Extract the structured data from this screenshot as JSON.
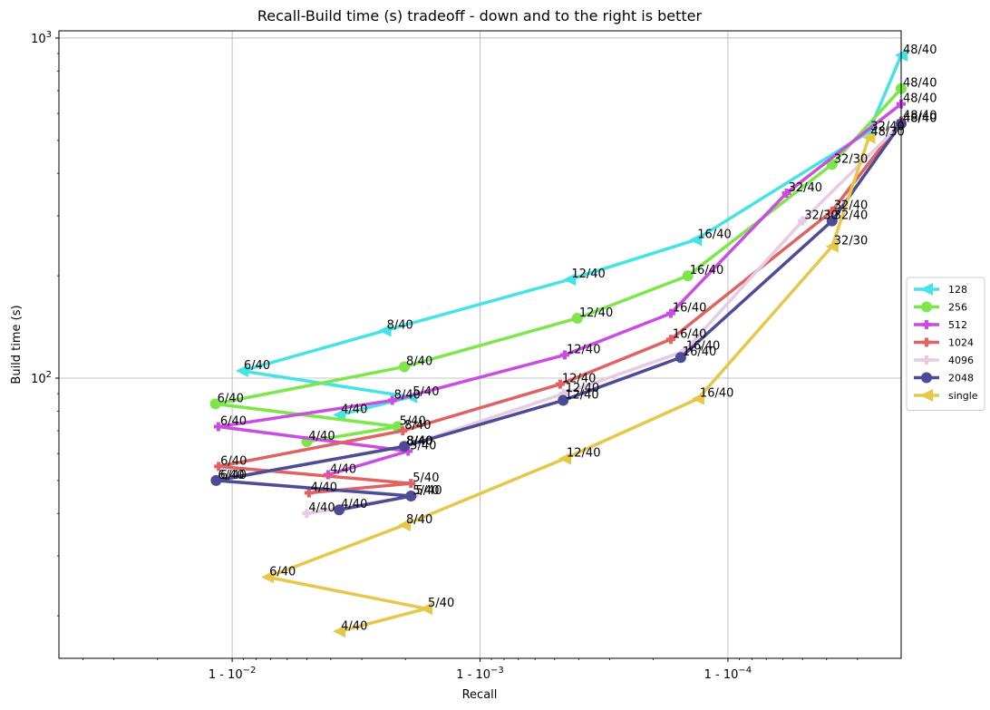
{
  "chart_data": {
    "type": "line",
    "title": "Recall-Build time (s) tradeoff - down and to the right is better",
    "xlabel": "Recall",
    "ylabel": "Build time (s)",
    "x_scale": "log(1 - recall), reversed",
    "y_scale": "log",
    "xlim": [
      0.95,
      0.99998
    ],
    "ylim": [
      15,
      1050
    ],
    "x_ticks": [
      {
        "value": 0.99,
        "label": "1 - 10^-2"
      },
      {
        "value": 0.999,
        "label": "1 - 10^-3"
      },
      {
        "value": 0.9999,
        "label": "1 - 10^-4"
      }
    ],
    "y_ticks": [
      {
        "value": 100,
        "label": "10^2"
      },
      {
        "value": 1000,
        "label": "10^3"
      }
    ],
    "grid": true,
    "legend_position": "right",
    "series": [
      {
        "name": "128",
        "color": "#45e3e3",
        "marker": "triangle-left",
        "x": [
          0.9963,
          0.9981,
          0.99087,
          0.99758,
          0.999565,
          0.999865,
          0.999973,
          0.99998
        ],
        "y": [
          78,
          88,
          105,
          138,
          195,
          255,
          530,
          890
        ],
        "labels": [
          "4/40",
          "5/40",
          "6/40",
          "8/40",
          "12/40",
          "16/40",
          "32/40",
          "48/40"
        ]
      },
      {
        "name": "256",
        "color": "#7de64b",
        "marker": "circle",
        "x": [
          0.995,
          0.99785,
          0.98832,
          0.99798,
          0.999595,
          0.999855,
          0.999962,
          0.99998
        ],
        "y": [
          65,
          72,
          84,
          108,
          150,
          200,
          425,
          710
        ],
        "labels": [
          "4/40",
          "5/40",
          "6/40",
          "8/40",
          "12/40",
          "16/40",
          "32/30",
          "48/40"
        ]
      },
      {
        "name": "512",
        "color": "#c94de0",
        "marker": "plus",
        "x": [
          0.9959,
          0.99805,
          0.98863,
          0.99774,
          0.999545,
          0.99983,
          0.999942,
          0.99998
        ],
        "y": [
          52,
          61,
          72,
          86,
          117,
          155,
          350,
          640
        ],
        "labels": [
          "4/40",
          "5/40",
          "6/40",
          "8/40",
          "12/40",
          "16/40",
          "32/40",
          "48/40"
        ]
      },
      {
        "name": "1024",
        "color": "#e06262",
        "marker": "plus",
        "x": [
          0.9951,
          0.9981,
          0.98866,
          0.99795,
          0.999525,
          0.99983,
          0.999962,
          0.99998
        ],
        "y": [
          46,
          49,
          55,
          70,
          96,
          130,
          310,
          570
        ],
        "labels": [
          "4/40",
          "5/40",
          "6/40",
          "8/40",
          "12/40",
          "16/40",
          "32/40",
          "48/40"
        ]
      },
      {
        "name": "4096",
        "color": "#e5cce4",
        "marker": "plus",
        "x": [
          0.995,
          0.99815,
          0.98863,
          0.99799,
          0.99954,
          0.99985,
          0.99995,
          0.99998
        ],
        "y": [
          40,
          45,
          50,
          63,
          90,
          120,
          290,
          560
        ],
        "labels": [
          "4/40",
          "5/40",
          "6/40",
          "8/40",
          "12/40",
          "16/40",
          "32/30",
          "48/40"
        ]
      },
      {
        "name": "2048",
        "color": "#4e4b96",
        "marker": "circle",
        "x": [
          0.9963,
          0.9981,
          0.98839,
          0.99798,
          0.999538,
          0.999845,
          0.999962,
          0.99998
        ],
        "y": [
          41,
          45,
          50,
          63,
          86,
          115,
          290,
          560
        ],
        "labels": [
          "4/40",
          "5/40",
          "6/40",
          "8/40",
          "12/40",
          "16/40",
          "32/40",
          "48/40"
        ]
      },
      {
        "name": "single",
        "color": "#e5c84a",
        "marker": "triangle-left",
        "x": [
          0.9963,
          0.99835,
          0.9928,
          0.99798,
          0.999545,
          0.999868,
          0.999962,
          0.999973
        ],
        "y": [
          18,
          21,
          26,
          37,
          58,
          87,
          244,
          510
        ],
        "labels": [
          "4/40",
          "5/40",
          "6/40",
          "8/40",
          "12/40",
          "16/40",
          "32/30",
          "48/30"
        ]
      }
    ]
  }
}
